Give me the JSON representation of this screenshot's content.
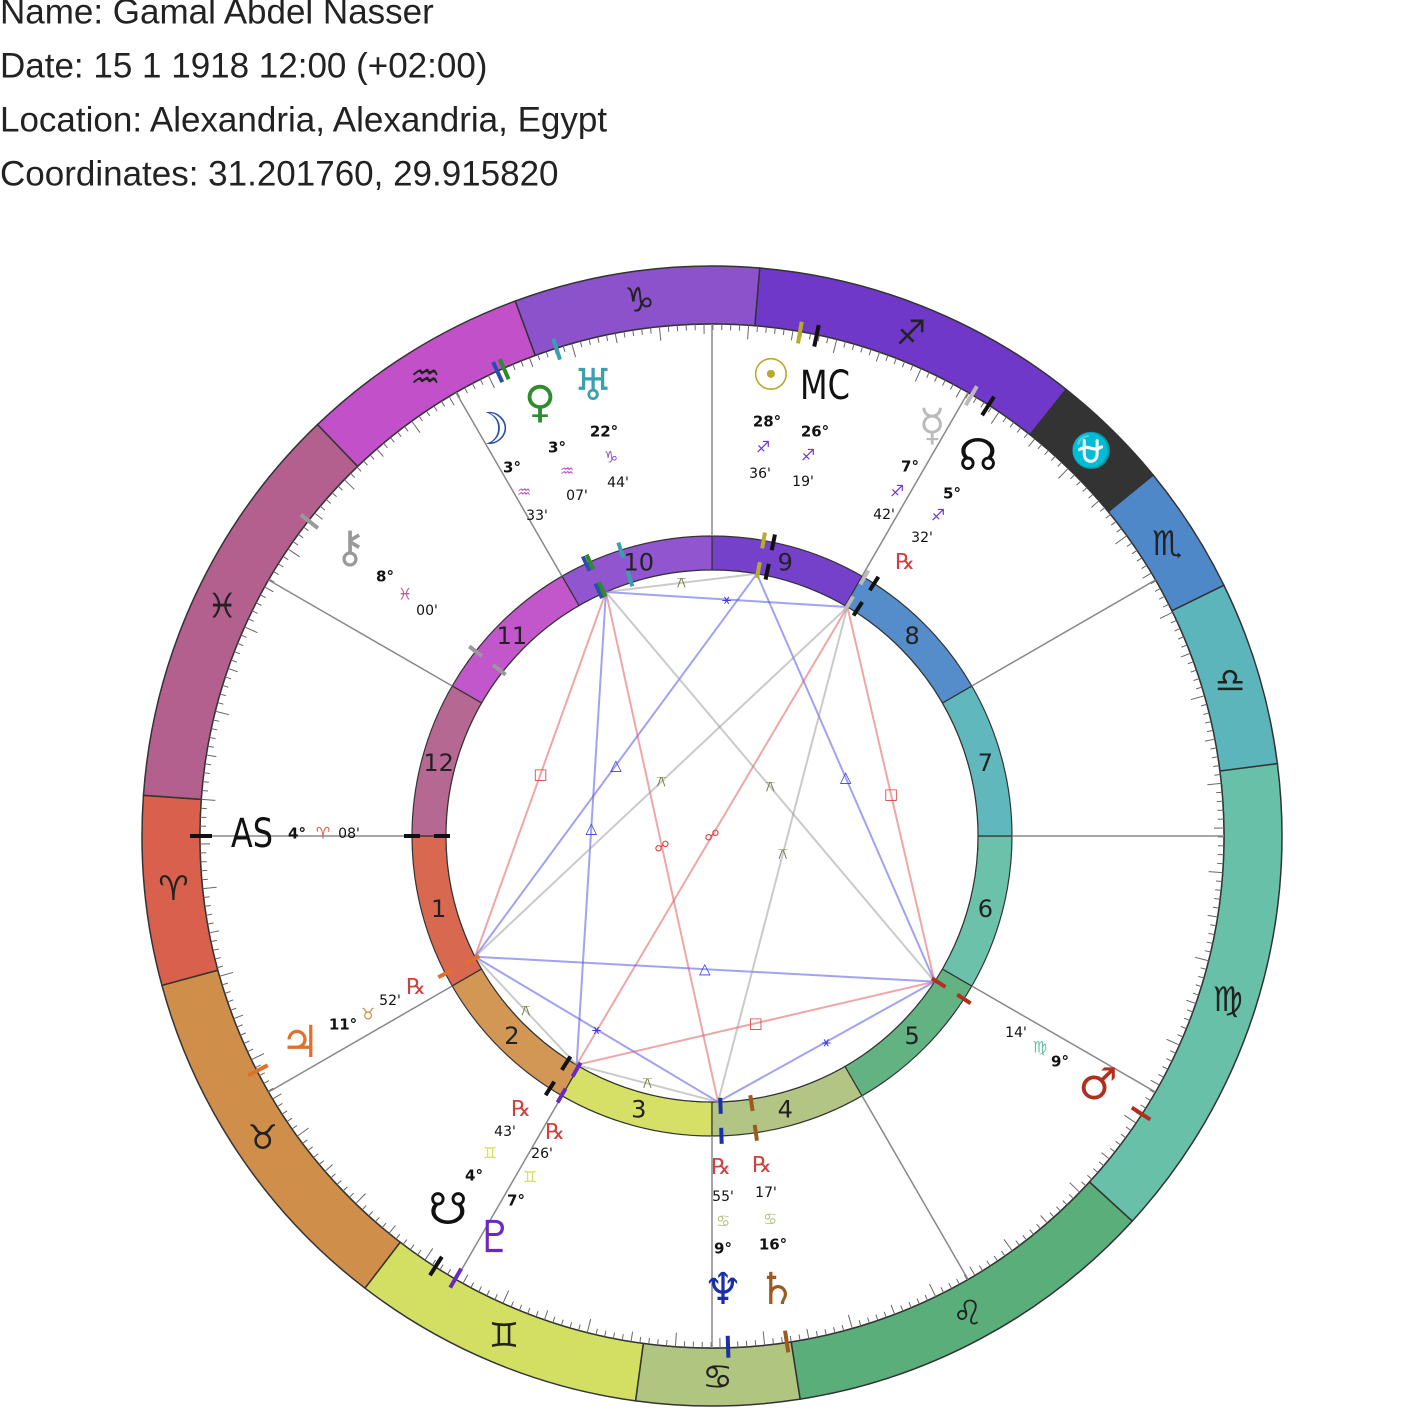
{
  "header": {
    "name": "Name: Gamal Abdel Nasser",
    "date": "Date: 15 1 1918 12:00 (+02:00)",
    "location": "Location: Alexandria, Alexandria, Egypt",
    "coordinates": "Coordinates: 31.201760, 29.915820"
  },
  "signs": [
    {
      "glyph": "♈",
      "color": "#d8604c"
    },
    {
      "glyph": "♉",
      "color": "#cf8f4a"
    },
    {
      "glyph": "♊",
      "color": "#d3df62"
    },
    {
      "glyph": "♋",
      "color": "#b0c580"
    },
    {
      "glyph": "♌",
      "color": "#5aae79"
    },
    {
      "glyph": "♍",
      "color": "#68c0a9"
    },
    {
      "glyph": "♎",
      "color": "#5bb5bb"
    },
    {
      "glyph": "♏",
      "color": "#4f88c9"
    },
    {
      "glyph": "⛎",
      "color": "#333333"
    },
    {
      "glyph": "♐",
      "color": "#7038c9"
    },
    {
      "glyph": "♑",
      "color": "#8b52cc"
    },
    {
      "glyph": "♒",
      "color": "#c150c9"
    },
    {
      "glyph": "♓",
      "color": "#b3608e"
    }
  ],
  "houses": [
    {
      "label": "1",
      "color": "#d8684f"
    },
    {
      "label": "2",
      "color": "#d29755"
    },
    {
      "label": "3",
      "color": "#d6e067"
    },
    {
      "label": "4",
      "color": "#b3c585"
    },
    {
      "label": "5",
      "color": "#62b282"
    },
    {
      "label": "6",
      "color": "#6cc1aa"
    },
    {
      "label": "7",
      "color": "#60b8bd"
    },
    {
      "label": "8",
      "color": "#558dcb"
    },
    {
      "label": "9",
      "color": "#7541cb"
    },
    {
      "label": "10",
      "color": "#9155cf"
    },
    {
      "label": "11",
      "color": "#c257cc"
    },
    {
      "label": "12",
      "color": "#b56892"
    }
  ],
  "points": [
    {
      "glyph": "AS",
      "degree": "4°",
      "sign": "♈",
      "minute": "08'",
      "color": "#111111"
    },
    {
      "glyph": "MC",
      "degree": "26°",
      "sign": "♐",
      "minute": "19'",
      "color": "#111111"
    },
    {
      "glyph": "☉",
      "degree": "28°",
      "sign": "♐",
      "minute": "36'",
      "color": "#b5ab2c"
    },
    {
      "glyph": "☽",
      "degree": "3°",
      "sign": "♒",
      "minute": "33'",
      "color": "#2b4fa8"
    },
    {
      "glyph": "♀",
      "degree": "3°",
      "sign": "♒",
      "minute": "07'",
      "color": "#2e8b2e"
    },
    {
      "glyph": "♅",
      "degree": "22°",
      "sign": "♑",
      "minute": "44'",
      "color": "#3aa0b0"
    },
    {
      "glyph": "☿",
      "degree": "7°",
      "sign": "♐",
      "minute": "42'",
      "color": "#bbbbbb"
    },
    {
      "glyph": "☊",
      "degree": "5°",
      "sign": "♐",
      "minute": "32'",
      "retrograde": "℞",
      "color": "#111111"
    },
    {
      "glyph": "⚷",
      "degree": "8°",
      "sign": "♓",
      "minute": "00'",
      "color": "#999999"
    },
    {
      "glyph": "♃",
      "degree": "11°",
      "sign": "♉",
      "minute": "52'",
      "retrograde": "℞",
      "color": "#e0702a"
    },
    {
      "glyph": "☋",
      "degree": "4°",
      "sign": "♊",
      "minute": "43'",
      "retrograde": "℞",
      "color": "#111111"
    },
    {
      "glyph": "♇",
      "degree": "7°",
      "sign": "♊",
      "minute": "26'",
      "retrograde": "℞",
      "color": "#6a2ac0"
    },
    {
      "glyph": "♆",
      "degree": "9°",
      "sign": "♋",
      "minute": "55'",
      "retrograde": "℞",
      "color": "#1a2fa8"
    },
    {
      "glyph": "♄",
      "degree": "16°",
      "sign": "♋",
      "minute": "17'",
      "retrograde": "℞",
      "color": "#9a5a20"
    },
    {
      "glyph": "♂",
      "degree": "9°",
      "sign": "♍",
      "minute": "14'",
      "color": "#b03020"
    }
  ],
  "aspects": [
    {
      "symbol": "□",
      "color": "#d84040"
    },
    {
      "symbol": "△",
      "color": "#3a3ae0"
    },
    {
      "symbol": "⚹",
      "color": "#3a3ae0"
    },
    {
      "symbol": "△",
      "color": "#3a3ae0"
    },
    {
      "symbol": "△",
      "color": "#3a3ae0"
    },
    {
      "symbol": "☍",
      "color": "#d84040"
    },
    {
      "symbol": "☍",
      "color": "#d84040"
    },
    {
      "symbol": "⚻",
      "color": "#6b7a3a"
    },
    {
      "symbol": "□",
      "color": "#d84040"
    },
    {
      "symbol": "⚻",
      "color": "#6b7a3a"
    },
    {
      "symbol": "△",
      "color": "#3a3ae0"
    },
    {
      "symbol": "⚹",
      "color": "#3a3ae0"
    },
    {
      "symbol": "⚹",
      "color": "#3a3ae0"
    },
    {
      "symbol": "□",
      "color": "#d84040"
    },
    {
      "symbol": "⚻",
      "color": "#6b7a3a"
    },
    {
      "symbol": "⚻",
      "color": "#6b7a3a"
    },
    {
      "symbol": "⚻",
      "color": "#6b7a3a"
    },
    {
      "symbol": "⚻",
      "color": "#6b7a3a"
    }
  ]
}
